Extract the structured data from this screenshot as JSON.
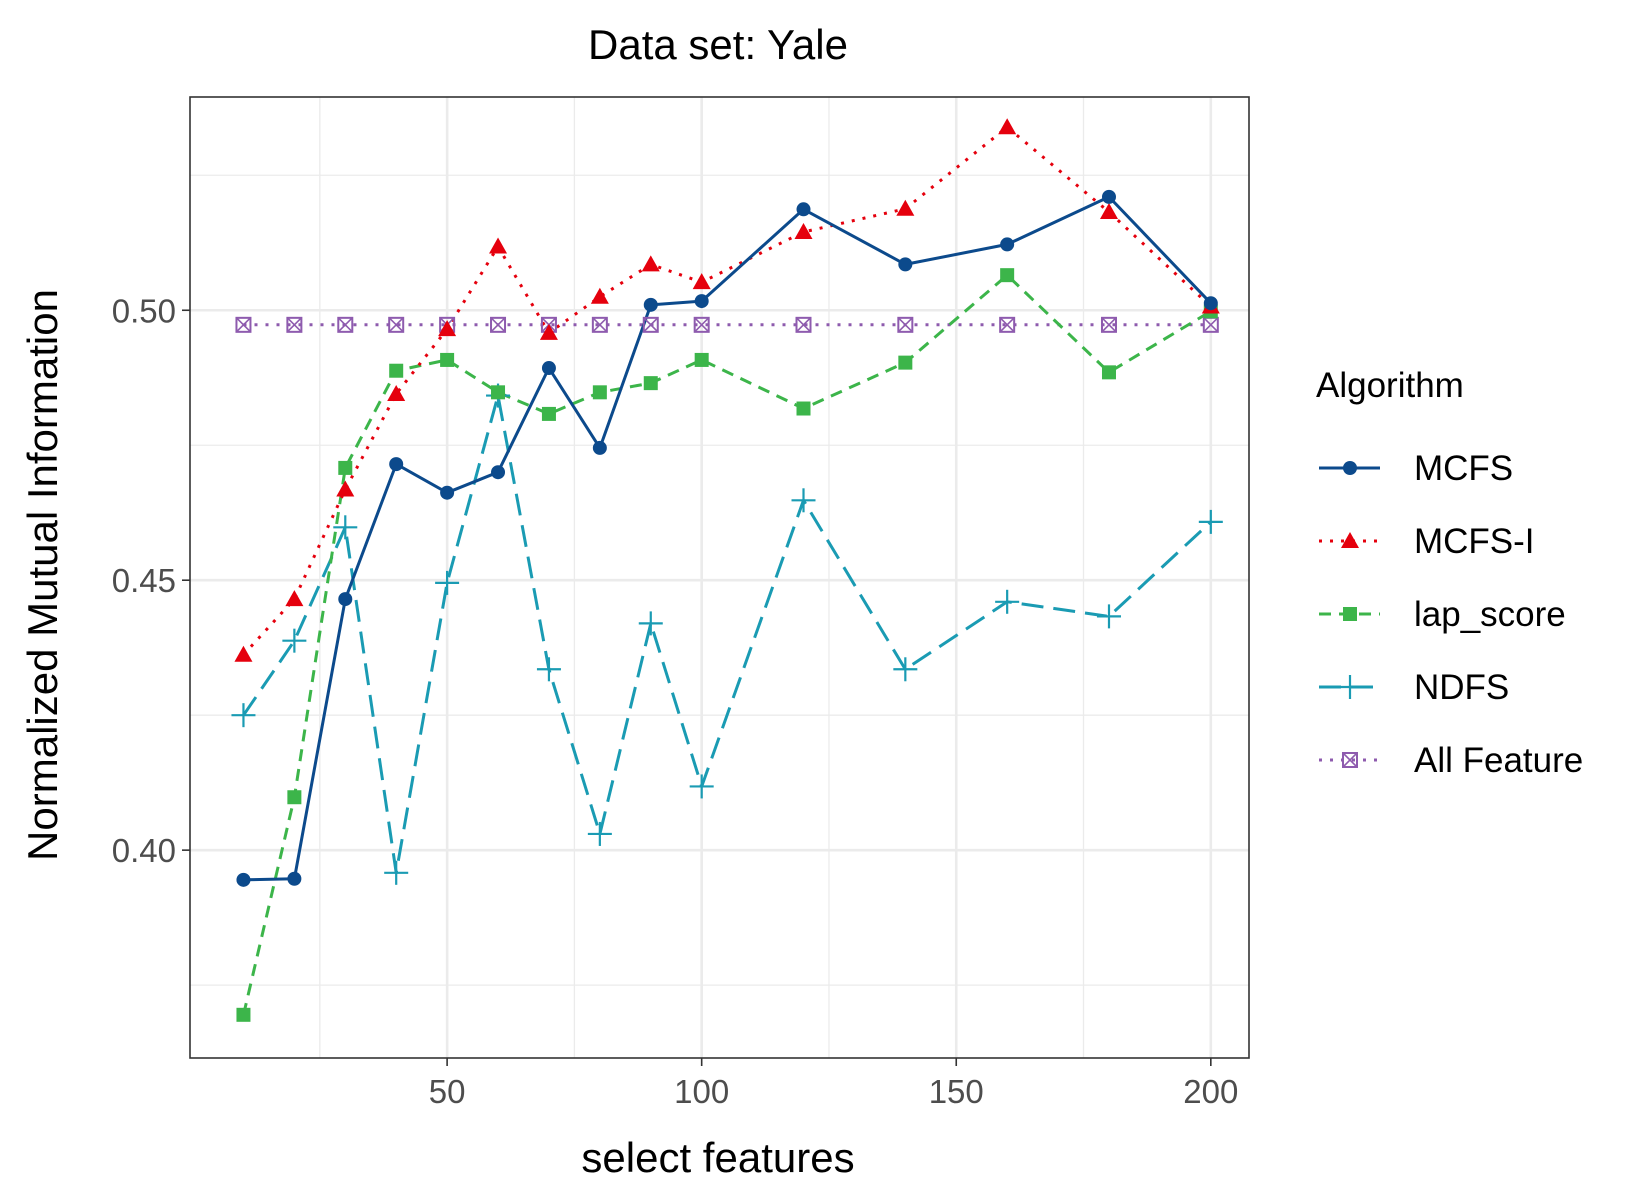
{
  "chart_data": {
    "type": "line",
    "title": "Data set: Yale",
    "xlabel": "select features",
    "ylabel": "Normalized Mutual Information",
    "xlim": [
      -0.5,
      207.5
    ],
    "ylim": [
      0.3615,
      0.5395
    ],
    "x_ticks": [
      50,
      100,
      150,
      200
    ],
    "x_tick_labels": [
      "50",
      "100",
      "150",
      "200"
    ],
    "y_ticks": [
      0.4,
      0.45,
      0.5
    ],
    "y_tick_labels": [
      "0.40",
      "0.45",
      "0.50"
    ],
    "grid": true,
    "legend_position": "right",
    "legend_title": "Algorithm",
    "x": [
      10,
      20,
      30,
      40,
      50,
      60,
      70,
      80,
      90,
      100,
      120,
      140,
      160,
      180,
      200
    ],
    "series": [
      {
        "name": "MCFS",
        "color": "#0C4A8C",
        "marker": "circle",
        "dash": "solid",
        "values": [
          0.3945,
          0.3947,
          0.4465,
          0.4715,
          0.4662,
          0.47,
          0.4893,
          0.4745,
          0.501,
          0.5017,
          0.5187,
          0.5085,
          0.5122,
          0.521,
          0.5013
        ]
      },
      {
        "name": "MCFS-I",
        "color": "#E5000D",
        "marker": "triangle",
        "dash": "dotted",
        "values": [
          0.4362,
          0.4465,
          0.4668,
          0.4845,
          0.4965,
          0.5118,
          0.4958,
          0.5025,
          0.5085,
          0.5052,
          0.5145,
          0.5188,
          0.5339,
          0.5182,
          0.5007
        ]
      },
      {
        "name": "lap_score",
        "color": "#3CB54A",
        "marker": "square",
        "dash": "dashed",
        "values": [
          0.3695,
          0.4098,
          0.4708,
          0.4888,
          0.4908,
          0.4848,
          0.4808,
          0.4848,
          0.4865,
          0.4908,
          0.4818,
          0.4903,
          0.5065,
          0.4885,
          0.4998
        ]
      },
      {
        "name": "NDFS",
        "color": "#1A9BB3",
        "marker": "plus",
        "dash": "longdash",
        "values": [
          0.425,
          0.4388,
          0.4598,
          0.3958,
          0.4495,
          0.4842,
          0.4335,
          0.403,
          0.442,
          0.4118,
          0.4648,
          0.4335,
          0.446,
          0.4433,
          0.4608
        ]
      },
      {
        "name": "All Feature",
        "color": "#8E5BAE",
        "marker": "boxx",
        "dash": "dotted",
        "values": [
          0.4973,
          0.4973,
          0.4973,
          0.4973,
          0.4973,
          0.4973,
          0.4973,
          0.4973,
          0.4973,
          0.4973,
          0.4973,
          0.4973,
          0.4973,
          0.4973,
          0.4973
        ]
      }
    ]
  }
}
